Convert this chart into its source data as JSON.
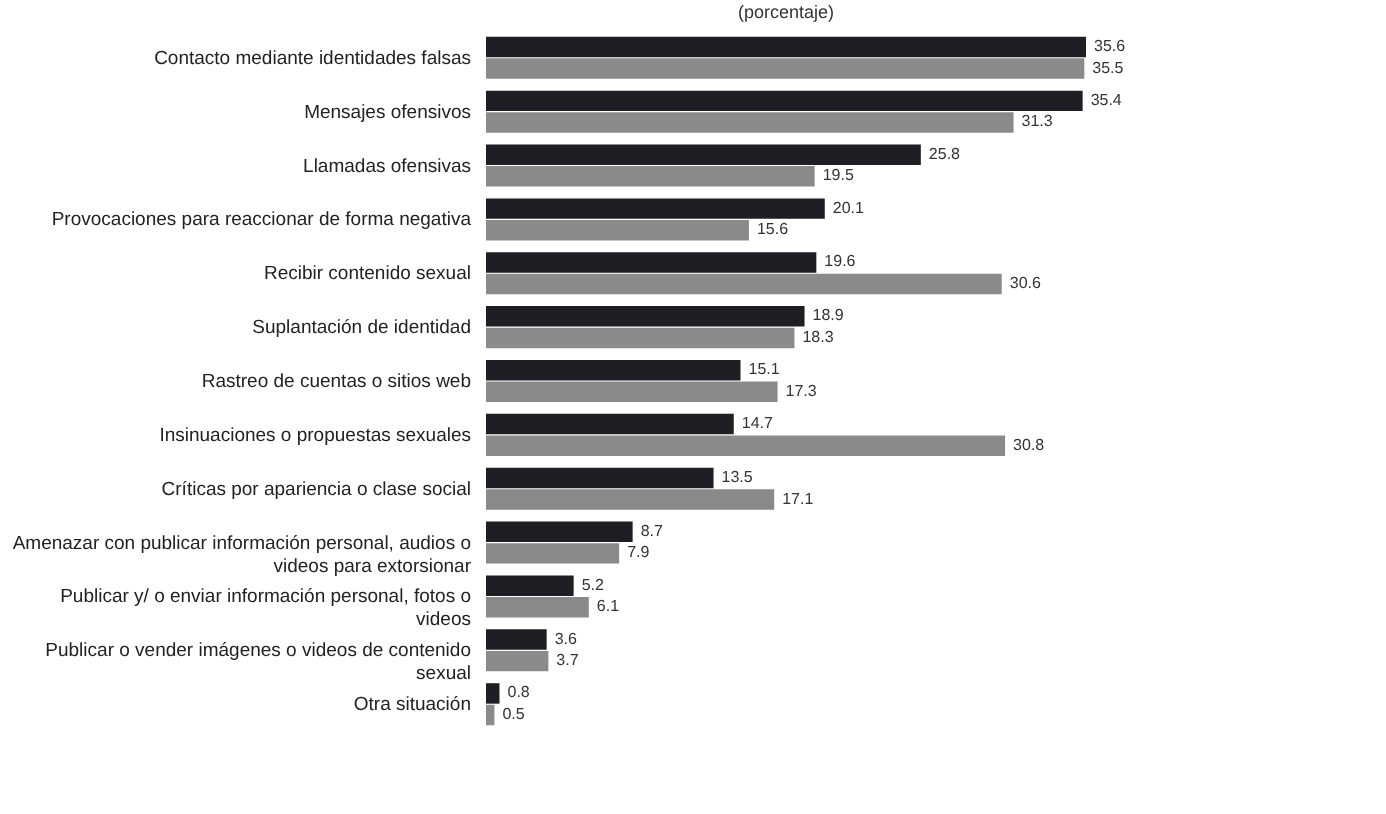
{
  "chart_data": {
    "type": "bar",
    "orientation": "horizontal",
    "title": "(porcentaje)",
    "data_labels": true,
    "categories": [
      "Contacto mediante identidades falsas",
      "Mensajes ofensivos",
      "Llamadas ofensivas",
      "Provocaciones para reaccionar de forma negativa",
      "Recibir contenido sexual",
      "Suplantación de identidad",
      "Rastreo de cuentas o sitios web",
      "Insinuaciones o propuestas sexuales",
      "Críticas por apariencia o clase social",
      "Amenazar con publicar información personal, audios o videos para extorsionar",
      "Publicar y/ o enviar información personal, fotos o videos",
      "Publicar o vender imágenes o videos de contenido sexual",
      "Otra situación"
    ],
    "series": [
      {
        "color": "#1e1e24",
        "values": [
          35.6,
          35.4,
          25.8,
          20.1,
          19.6,
          18.9,
          15.1,
          14.7,
          13.5,
          8.7,
          5.2,
          3.6,
          0.8
        ]
      },
      {
        "color": "#8a8a8a",
        "values": [
          35.5,
          31.3,
          19.5,
          15.6,
          30.6,
          18.3,
          17.3,
          30.8,
          17.1,
          7.9,
          6.1,
          3.7,
          0.5
        ]
      }
    ]
  }
}
